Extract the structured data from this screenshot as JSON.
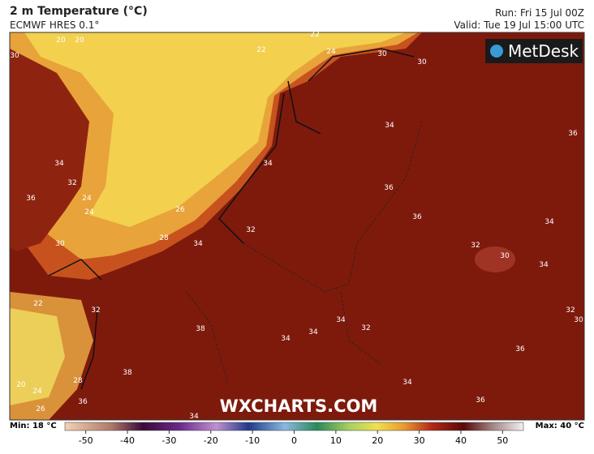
{
  "header": {
    "title": "2 m Temperature (°C)",
    "subtitle": "ECMWF HRES 0.1°",
    "run": "Run: Fri 15 Jul 00Z",
    "valid": "Valid: Tue 19 Jul 15:00 UTC"
  },
  "logo": "MetDesk",
  "watermark": "WXCHARTS.COM",
  "map": {
    "contour_labels": [
      22,
      20,
      20,
      30,
      24,
      30,
      30,
      22,
      34,
      34,
      34,
      36,
      32,
      36,
      24,
      24,
      26,
      28,
      34,
      32,
      36,
      34,
      36,
      30,
      32,
      30,
      34,
      34,
      22,
      32,
      38,
      34,
      34,
      32,
      34,
      32,
      30,
      36,
      38,
      34,
      20,
      24,
      26,
      28,
      36,
      36
    ]
  },
  "colorbar": {
    "min_label": "Min: 18 °C",
    "max_label": "Max: 40 °C",
    "range": [
      -55,
      55
    ],
    "ticks": [
      -50,
      -40,
      -30,
      -20,
      -10,
      0,
      10,
      20,
      30,
      40,
      50
    ]
  }
}
